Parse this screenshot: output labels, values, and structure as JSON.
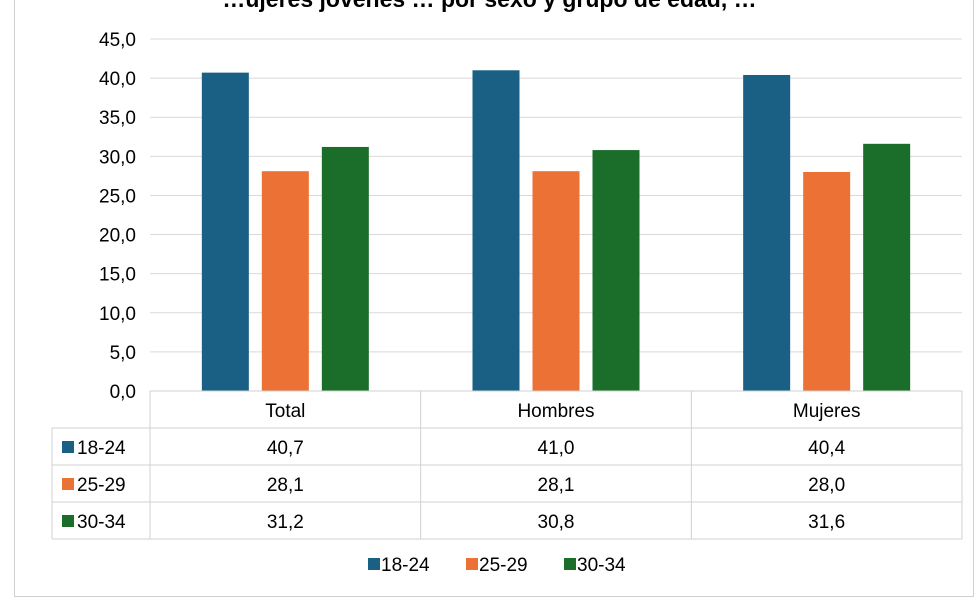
{
  "chart_data": {
    "type": "bar",
    "title": "…ujeres jóvenes … por sexo y grupo de edad, …",
    "categories": [
      "Total",
      "Hombres",
      "Mujeres"
    ],
    "series": [
      {
        "name": "18-24",
        "values": [
          40.7,
          41.0,
          40.4
        ],
        "value_labels": [
          "40,7",
          "41,0",
          "40,4"
        ],
        "color": "#1a5f84"
      },
      {
        "name": "25-29",
        "values": [
          28.1,
          28.1,
          28.0
        ],
        "value_labels": [
          "28,1",
          "28,1",
          "28,0"
        ],
        "color": "#ec7134"
      },
      {
        "name": "30-34",
        "values": [
          31.2,
          30.8,
          31.6
        ],
        "value_labels": [
          "31,2",
          "30,8",
          "31,6"
        ],
        "color": "#1b6e2a"
      }
    ],
    "ylim": [
      0,
      45
    ],
    "yticks": [
      0,
      5,
      10,
      15,
      20,
      25,
      30,
      35,
      40,
      45
    ],
    "ytick_labels": [
      "0,0",
      "5,0",
      "10,0",
      "15,0",
      "20,0",
      "25,0",
      "30,0",
      "35,0",
      "40,0",
      "45,0"
    ],
    "grid": true,
    "data_table": true,
    "legend_position": "bottom"
  }
}
